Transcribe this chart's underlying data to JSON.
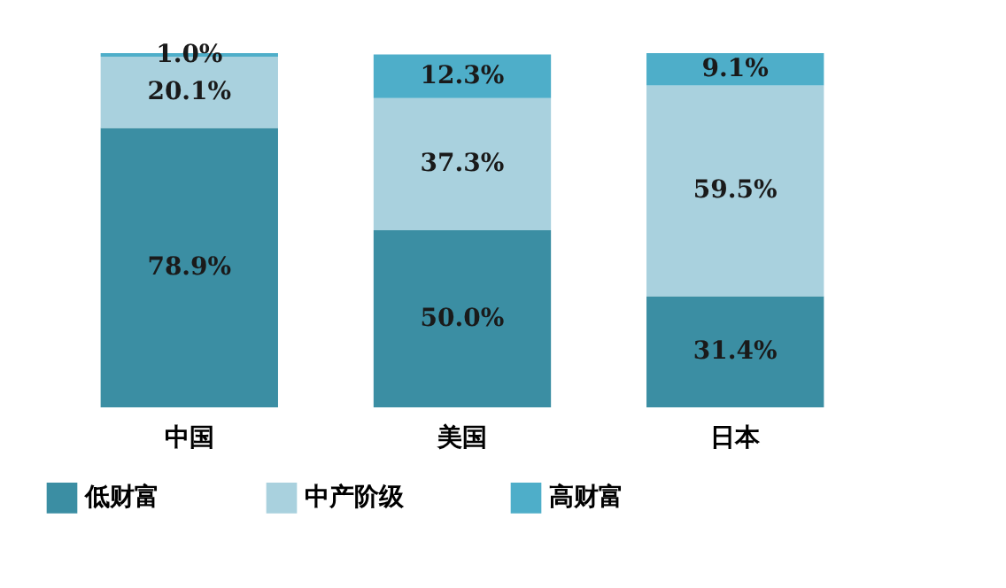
{
  "chart_data": {
    "type": "bar",
    "stacked": true,
    "categories": [
      "中国",
      "美国",
      "日本"
    ],
    "tick_labels": "x",
    "legend": "bottom",
    "series": [
      {
        "name": "低财富",
        "color": "#3b8ea3",
        "values": [
          78.9,
          50.0,
          31.4
        ],
        "value_labels": [
          "78.9%",
          "50.0%",
          "31.4%"
        ]
      },
      {
        "name": "中产阶级",
        "color": "#a9d1de",
        "values": [
          20.1,
          37.3,
          59.5
        ],
        "value_labels": [
          "20.1%",
          "37.3%",
          "59.5%"
        ]
      },
      {
        "name": "高财富",
        "color": "#4eaec9",
        "values": [
          1.0,
          12.3,
          9.1
        ],
        "value_labels": [
          "1.0%",
          "12.3%",
          "9.1%"
        ]
      }
    ]
  }
}
